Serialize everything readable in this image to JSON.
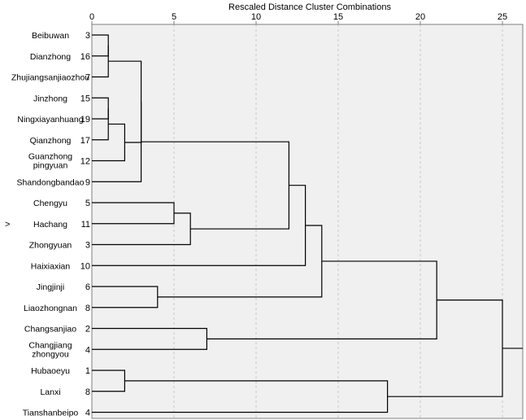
{
  "chart_data": {
    "type": "dendrogram",
    "title": "Rescaled Distance Cluster Combinations",
    "x_ticks": [
      0,
      5,
      10,
      15,
      20,
      25
    ],
    "xlim": [
      0,
      25
    ],
    "grid": true,
    "selected_marker": ">",
    "leaves": [
      {
        "label": [
          "Beibuwan"
        ],
        "id": "3"
      },
      {
        "label": [
          "Dianzhong"
        ],
        "id": "16"
      },
      {
        "label": [
          "Zhujiangsanjiaozhou"
        ],
        "id": "7"
      },
      {
        "label": [
          "Jinzhong"
        ],
        "id": "15"
      },
      {
        "label": [
          "Ningxiayanhuang"
        ],
        "id": "19"
      },
      {
        "label": [
          "Qianzhong"
        ],
        "id": "17"
      },
      {
        "label": [
          "Guanzhong",
          "pingyuan"
        ],
        "id": "12"
      },
      {
        "label": [
          "Shandongbandao"
        ],
        "id": "9"
      },
      {
        "label": [
          "Chengyu"
        ],
        "id": "5"
      },
      {
        "label": [
          "Hachang"
        ],
        "id": "11",
        "selected": true
      },
      {
        "label": [
          "Zhongyuan"
        ],
        "id": "3"
      },
      {
        "label": [
          "Haixiaxian"
        ],
        "id": "10"
      },
      {
        "label": [
          "Jingjinji"
        ],
        "id": "6"
      },
      {
        "label": [
          "Liaozhongnan"
        ],
        "id": "8"
      },
      {
        "label": [
          "Changsanjiao"
        ],
        "id": "2"
      },
      {
        "label": [
          "Changjiang",
          "zhongyou"
        ],
        "id": "4"
      },
      {
        "label": [
          "Hubaoeyu"
        ],
        "id": "1"
      },
      {
        "label": [
          "Lanxi"
        ],
        "id": "8"
      },
      {
        "label": [
          "Tianshanbeipo"
        ],
        "id": "4"
      }
    ],
    "merges": [
      {
        "a": 0,
        "b": 1,
        "height": 1
      },
      {
        "a": 19,
        "b": 2,
        "height": 1
      },
      {
        "a": 3,
        "b": 4,
        "height": 1
      },
      {
        "a": 21,
        "b": 5,
        "height": 1
      },
      {
        "a": 22,
        "b": 6,
        "height": 2
      },
      {
        "a": 20,
        "b": 23,
        "height": 3
      },
      {
        "a": 24,
        "b": 7,
        "height": 3
      },
      {
        "a": 8,
        "b": 9,
        "height": 5
      },
      {
        "a": 26,
        "b": 10,
        "height": 6
      },
      {
        "a": 25,
        "b": 27,
        "height": 12
      },
      {
        "a": 28,
        "b": 11,
        "height": 13
      },
      {
        "a": 12,
        "b": 13,
        "height": 4
      },
      {
        "a": 29,
        "b": 30,
        "height": 14
      },
      {
        "a": 14,
        "b": 15,
        "height": 7
      },
      {
        "a": 31,
        "b": 32,
        "height": 21
      },
      {
        "a": 16,
        "b": 17,
        "height": 2
      },
      {
        "a": 34,
        "b": 18,
        "height": 18
      },
      {
        "a": 33,
        "b": 35,
        "height": 25
      }
    ]
  }
}
